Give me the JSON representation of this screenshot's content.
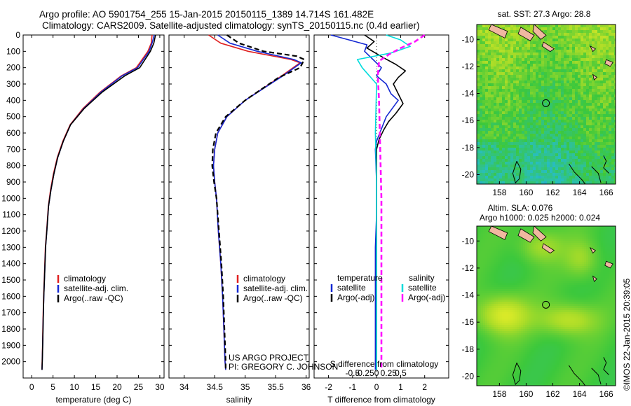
{
  "header": {
    "line1": "Argo profile: AO 5901754_255 15-Jan-2015 20150115_1389 14.714S 161.482E",
    "line2": "Climatology: CARS2009. Satellite-adjusted climatology: synTS_20150115.nc (0.4d earlier)"
  },
  "credits": {
    "project": "US ARGO PROJECT",
    "pi": "PI: GREGORY C. JOHNSON",
    "imos": "©IMOS 22-Jan-2015 20:39:05"
  },
  "colors": {
    "climatology": "#e02020",
    "satellite": "#1428d2",
    "argo": "#000000",
    "sat_salinity": "#00dcdc",
    "argo_salinity_adj": "#ff10ff"
  },
  "chart_data": [
    {
      "id": "temperature",
      "type": "line",
      "xlabel": "temperature (deg C)",
      "ylabel": "",
      "xlim": [
        -2,
        31
      ],
      "ylim": [
        2100,
        0
      ],
      "xticks": [
        0,
        5,
        10,
        15,
        20,
        25,
        30
      ],
      "yticks": [
        0,
        100,
        200,
        300,
        400,
        500,
        600,
        700,
        800,
        900,
        1000,
        1100,
        1200,
        1300,
        1400,
        1500,
        1600,
        1700,
        1800,
        1900,
        2000
      ],
      "legend": [
        "climatology",
        "satellite-adj. clim.",
        "Argo(..raw -QC)"
      ],
      "series": [
        {
          "name": "climatology",
          "color": "#e02020",
          "x": [
            28.2,
            28.0,
            27.2,
            24.5,
            21.0,
            16.0,
            12.0,
            9.0,
            7.3,
            6.0,
            5.1,
            4.4,
            3.9,
            3.5,
            3.2,
            3.0,
            2.8,
            2.65,
            2.55,
            2.45,
            2.4
          ],
          "y": [
            0,
            50,
            100,
            200,
            250,
            350,
            450,
            550,
            650,
            750,
            850,
            950,
            1050,
            1200,
            1300,
            1450,
            1600,
            1750,
            1900,
            2000,
            2050
          ]
        },
        {
          "name": "satellite-adj. clim.",
          "color": "#1428d2",
          "x": [
            28.7,
            28.2,
            27.5,
            24.8,
            21.2,
            16.2,
            12.2,
            9.1,
            7.4,
            6.1,
            5.2,
            4.5,
            3.95,
            3.55,
            3.25,
            3.05,
            2.85,
            2.7,
            2.58,
            2.48,
            2.42
          ],
          "y": [
            0,
            50,
            100,
            200,
            250,
            350,
            450,
            550,
            650,
            750,
            850,
            950,
            1050,
            1200,
            1300,
            1450,
            1600,
            1750,
            1900,
            2000,
            2050
          ]
        },
        {
          "name": "Argo(..raw -QC)",
          "color": "#000000",
          "x": [
            29.0,
            28.6,
            27.8,
            25.3,
            21.8,
            16.5,
            12.3,
            9.1,
            7.4,
            6.1,
            5.2,
            4.5,
            3.95,
            3.55,
            3.25,
            3.05,
            2.85,
            2.7,
            2.58,
            2.48,
            2.42
          ],
          "y": [
            0,
            50,
            100,
            200,
            250,
            350,
            450,
            550,
            650,
            750,
            850,
            950,
            1050,
            1200,
            1300,
            1450,
            1600,
            1750,
            1900,
            2000,
            2050
          ]
        }
      ]
    },
    {
      "id": "salinity",
      "type": "line",
      "xlabel": "salinity",
      "ylabel": "",
      "xlim": [
        33.75,
        36.05
      ],
      "ylim": [
        2100,
        0
      ],
      "xticks": [
        34,
        34.5,
        35,
        35.5,
        36
      ],
      "xticklabels": [
        "34",
        "34.5",
        "35",
        "35.5",
        "36"
      ],
      "legend": [
        "climatology",
        "satellite-adj. clim.",
        "Argo(..raw -QC)"
      ],
      "series": [
        {
          "name": "climatology",
          "color": "#e02020",
          "x": [
            34.4,
            34.6,
            35.05,
            35.75,
            35.9,
            35.6,
            35.0,
            34.7,
            34.55,
            34.5,
            34.48,
            34.5,
            34.53,
            34.56,
            34.6,
            34.63,
            34.65,
            34.66,
            34.67,
            34.68
          ],
          "y": [
            0,
            50,
            100,
            150,
            170,
            250,
            400,
            500,
            600,
            700,
            800,
            900,
            1000,
            1200,
            1400,
            1600,
            1800,
            1900,
            2000,
            2050
          ]
        },
        {
          "name": "satellite-adj. clim.",
          "color": "#1428d2",
          "x": [
            34.55,
            34.75,
            35.2,
            35.8,
            35.92,
            35.62,
            35.0,
            34.7,
            34.55,
            34.5,
            34.48,
            34.5,
            34.53,
            34.56,
            34.6,
            34.63,
            34.65,
            34.66,
            34.67,
            34.68
          ],
          "y": [
            0,
            50,
            100,
            150,
            170,
            250,
            400,
            500,
            600,
            700,
            800,
            900,
            1000,
            1200,
            1400,
            1600,
            1800,
            1900,
            2000,
            2050
          ]
        },
        {
          "name": "Argo(..raw -QC)",
          "color": "#000000",
          "x": [
            34.7,
            34.9,
            35.3,
            35.85,
            35.97,
            35.9,
            35.55,
            35.0,
            34.68,
            34.52,
            34.47,
            34.46,
            34.49,
            34.53,
            34.57,
            34.61,
            34.64,
            34.66,
            34.67,
            34.68,
            34.68
          ],
          "y": [
            0,
            50,
            100,
            130,
            150,
            200,
            260,
            400,
            500,
            600,
            700,
            800,
            900,
            1000,
            1200,
            1400,
            1600,
            1800,
            1900,
            2000,
            2050
          ]
        }
      ]
    },
    {
      "id": "difference",
      "type": "line",
      "xlabel": "T difference from climatology",
      "x2label": "S difference from climatology",
      "xlim": [
        -2.6,
        3.0
      ],
      "ylim": [
        2100,
        0
      ],
      "xticks": [
        -2,
        -1,
        0,
        1,
        2
      ],
      "xticklabels": [
        "-2",
        "-1",
        "0",
        "1",
        "2"
      ],
      "sticks": [
        -1,
        -0.5,
        0,
        0.5,
        1
      ],
      "sticklabels": [
        "-0.5",
        "-0.25",
        "0",
        "0.25",
        "0.5"
      ],
      "legend": {
        "temperature_title": "temperature",
        "salinity_title": "salinity",
        "items": [
          "satellite",
          "Argo(-adj)",
          "satellite",
          "Argo(-adj)"
        ]
      },
      "series": [
        {
          "name": "T satellite",
          "color": "#1428d2",
          "x": [
            -1.9,
            -0.4,
            -0.5,
            0.2,
            0.0,
            0.4,
            0.6,
            0.9,
            0.4,
            0.0,
            -0.05,
            0.0,
            0.0,
            -0.05,
            -0.05,
            -0.05,
            -0.05
          ],
          "y": [
            0,
            60,
            100,
            200,
            250,
            300,
            360,
            400,
            500,
            650,
            700,
            900,
            1100,
            1300,
            1600,
            1900,
            2050
          ]
        },
        {
          "name": "T Argo(-adj)",
          "color": "#000000",
          "x": [
            -0.5,
            -0.1,
            -0.4,
            0.3,
            0.8,
            1.2,
            0.9,
            0.7,
            0.9,
            1.1,
            0.8,
            0.5,
            0.3,
            0.1,
            0.0,
            0.0,
            0.0,
            0.0,
            0.0,
            0.0
          ],
          "y": [
            0,
            40,
            80,
            140,
            180,
            220,
            260,
            300,
            360,
            420,
            480,
            530,
            580,
            640,
            700,
            900,
            1200,
            1500,
            1800,
            2050
          ]
        },
        {
          "name": "S satellite",
          "color": "#00dcdc",
          "x": [
            0.4,
            1.0,
            1.4,
            0.6,
            -0.8,
            -0.6,
            0.0,
            -0.05,
            0.0,
            0.0,
            0.0,
            0.0
          ],
          "y": [
            0,
            30,
            70,
            110,
            150,
            200,
            300,
            600,
            900,
            1300,
            1700,
            2050
          ]
        },
        {
          "name": "S Argo(-adj)",
          "color": "#ff10ff",
          "x": [
            2.0,
            1.6,
            1.0,
            0.5,
            0.1,
            0.05,
            0.1,
            0.15,
            0.2,
            0.2,
            0.2,
            0.2
          ],
          "y": [
            0,
            40,
            80,
            120,
            160,
            250,
            400,
            700,
            1000,
            1400,
            1800,
            2050
          ]
        }
      ]
    },
    {
      "id": "sst-map",
      "type": "heatmap",
      "title": "sat. SST: 27.3  Argo: 28.8",
      "xticks": [
        158,
        160,
        162,
        164,
        166
      ],
      "yticks": [
        -10,
        -12,
        -14,
        -16,
        -18,
        -20
      ],
      "xlim": [
        156.3,
        166.7
      ],
      "ylim": [
        -20.7,
        -8.9
      ],
      "marker": {
        "lon": 161.482,
        "lat": -14.714
      }
    },
    {
      "id": "sla-map",
      "type": "heatmap",
      "title": "Altim. SLA: 0.076",
      "subtitle": "Argo h1000: 0.025  h2000: 0.024",
      "xticks": [
        158,
        160,
        162,
        164,
        166
      ],
      "yticks": [
        -10,
        -12,
        -14,
        -16,
        -18,
        -20
      ],
      "xlim": [
        156.3,
        166.7
      ],
      "ylim": [
        -20.7,
        -8.9
      ],
      "marker": {
        "lon": 161.482,
        "lat": -14.714
      }
    }
  ]
}
